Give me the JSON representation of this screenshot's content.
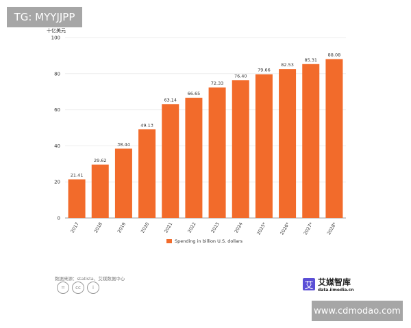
{
  "watermarks": {
    "top": "TG: MYYJJPP",
    "bottom": "www.cdmodao.com"
  },
  "footer": {
    "source": "数据来源：statista、艾媒数据中心",
    "logo_name": "艾媒智库",
    "logo_url": "data.iimedia.cn",
    "logo_mark": "艾",
    "cc_icons": [
      "=",
      "cc",
      "i"
    ]
  },
  "chart_data": {
    "type": "bar",
    "unit_label": "十亿美元",
    "categories": [
      "2017",
      "2018",
      "2019",
      "2020",
      "2021",
      "2022",
      "2023",
      "2024",
      "2025*",
      "2026*",
      "2027*",
      "2028*"
    ],
    "series": [
      {
        "name": "Spending in billion U.S. dollars",
        "values": [
          21.41,
          29.62,
          38.44,
          49.13,
          63.14,
          66.65,
          72.33,
          76.4,
          79.66,
          82.53,
          85.31,
          88.08
        ],
        "labels": [
          "21.41",
          "29.62",
          "38.44",
          "49.13",
          "63.14",
          "66.65",
          "72.33",
          "76.40",
          "79.66",
          "82.53",
          "85.31",
          "88.08"
        ]
      }
    ],
    "ylim": [
      0,
      100
    ],
    "yticks": [
      0,
      20,
      40,
      60,
      80,
      100
    ],
    "grid": true,
    "legend": "bottom",
    "color": "#f26b2b"
  }
}
